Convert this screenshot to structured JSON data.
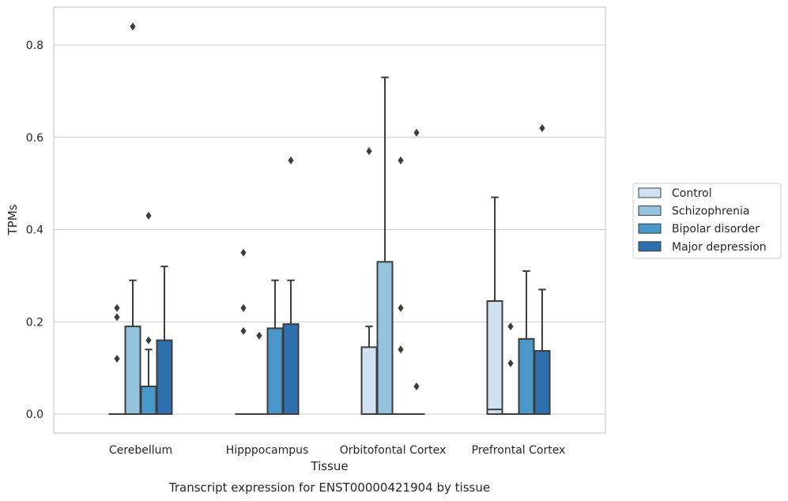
{
  "caption": "Transcript expression for ENST00000421904 by tissue",
  "chart_data": {
    "type": "box",
    "title": "",
    "xlabel": "Tissue",
    "ylabel": "TPMs",
    "ylim": [
      -0.04,
      0.885
    ],
    "yticks": [
      0.0,
      0.2,
      0.4,
      0.6,
      0.8
    ],
    "ytick_labels": [
      "0.0",
      "0.2",
      "0.4",
      "0.6",
      "0.8"
    ],
    "grid": "horizontal",
    "legend_position": "right",
    "categories": [
      "Cerebellum",
      "Hipppocampus",
      "Orbitofontal Cortex",
      "Prefrontal Cortex"
    ],
    "series": [
      {
        "name": "Control",
        "color": "#d0e1f2",
        "boxes": [
          {
            "q1": 0.0,
            "median": 0.0,
            "q3": 0.0,
            "whisker_low": 0.0,
            "whisker_high": 0.0,
            "outliers": [
              0.12,
              0.21,
              0.23
            ]
          },
          {
            "q1": 0.0,
            "median": 0.0,
            "q3": 0.0,
            "whisker_low": 0.0,
            "whisker_high": 0.0,
            "outliers": [
              0.18,
              0.23,
              0.35
            ]
          },
          {
            "q1": 0.0,
            "median": 0.0,
            "q3": 0.145,
            "whisker_low": 0.0,
            "whisker_high": 0.19,
            "outliers": [
              0.57
            ]
          },
          {
            "q1": 0.0,
            "median": 0.01,
            "q3": 0.245,
            "whisker_low": 0.0,
            "whisker_high": 0.47,
            "outliers": []
          }
        ]
      },
      {
        "name": "Schizophrenia",
        "color": "#94c4df",
        "boxes": [
          {
            "q1": 0.0,
            "median": 0.0,
            "q3": 0.19,
            "whisker_low": 0.0,
            "whisker_high": 0.29,
            "outliers": [
              0.84
            ]
          },
          {
            "q1": 0.0,
            "median": 0.0,
            "q3": 0.0,
            "whisker_low": 0.0,
            "whisker_high": 0.0,
            "outliers": [
              0.17
            ]
          },
          {
            "q1": 0.0,
            "median": 0.0,
            "q3": 0.33,
            "whisker_low": 0.0,
            "whisker_high": 0.73,
            "outliers": []
          },
          {
            "q1": 0.0,
            "median": 0.0,
            "q3": 0.0,
            "whisker_low": 0.0,
            "whisker_high": 0.0,
            "outliers": [
              0.11,
              0.19
            ]
          }
        ]
      },
      {
        "name": "Bipolar disorder",
        "color": "#4a98c9",
        "boxes": [
          {
            "q1": 0.0,
            "median": 0.0,
            "q3": 0.06,
            "whisker_low": 0.0,
            "whisker_high": 0.14,
            "outliers": [
              0.16,
              0.43
            ]
          },
          {
            "q1": 0.0,
            "median": 0.0,
            "q3": 0.186,
            "whisker_low": 0.0,
            "whisker_high": 0.29,
            "outliers": []
          },
          {
            "q1": 0.0,
            "median": 0.0,
            "q3": 0.0,
            "whisker_low": 0.0,
            "whisker_high": 0.0,
            "outliers": [
              0.14,
              0.23,
              0.55
            ]
          },
          {
            "q1": 0.0,
            "median": 0.0,
            "q3": 0.163,
            "whisker_low": 0.0,
            "whisker_high": 0.31,
            "outliers": []
          }
        ]
      },
      {
        "name": "Major depression",
        "color": "#2e6fad",
        "boxes": [
          {
            "q1": 0.0,
            "median": 0.0,
            "q3": 0.16,
            "whisker_low": 0.0,
            "whisker_high": 0.32,
            "outliers": []
          },
          {
            "q1": 0.0,
            "median": 0.0,
            "q3": 0.195,
            "whisker_low": 0.0,
            "whisker_high": 0.29,
            "outliers": [
              0.55
            ]
          },
          {
            "q1": 0.0,
            "median": 0.0,
            "q3": 0.0,
            "whisker_low": 0.0,
            "whisker_high": 0.0,
            "outliers": [
              0.06,
              0.61
            ]
          },
          {
            "q1": 0.0,
            "median": 0.0,
            "q3": 0.137,
            "whisker_low": 0.0,
            "whisker_high": 0.27,
            "outliers": [
              0.62
            ]
          }
        ]
      }
    ]
  }
}
